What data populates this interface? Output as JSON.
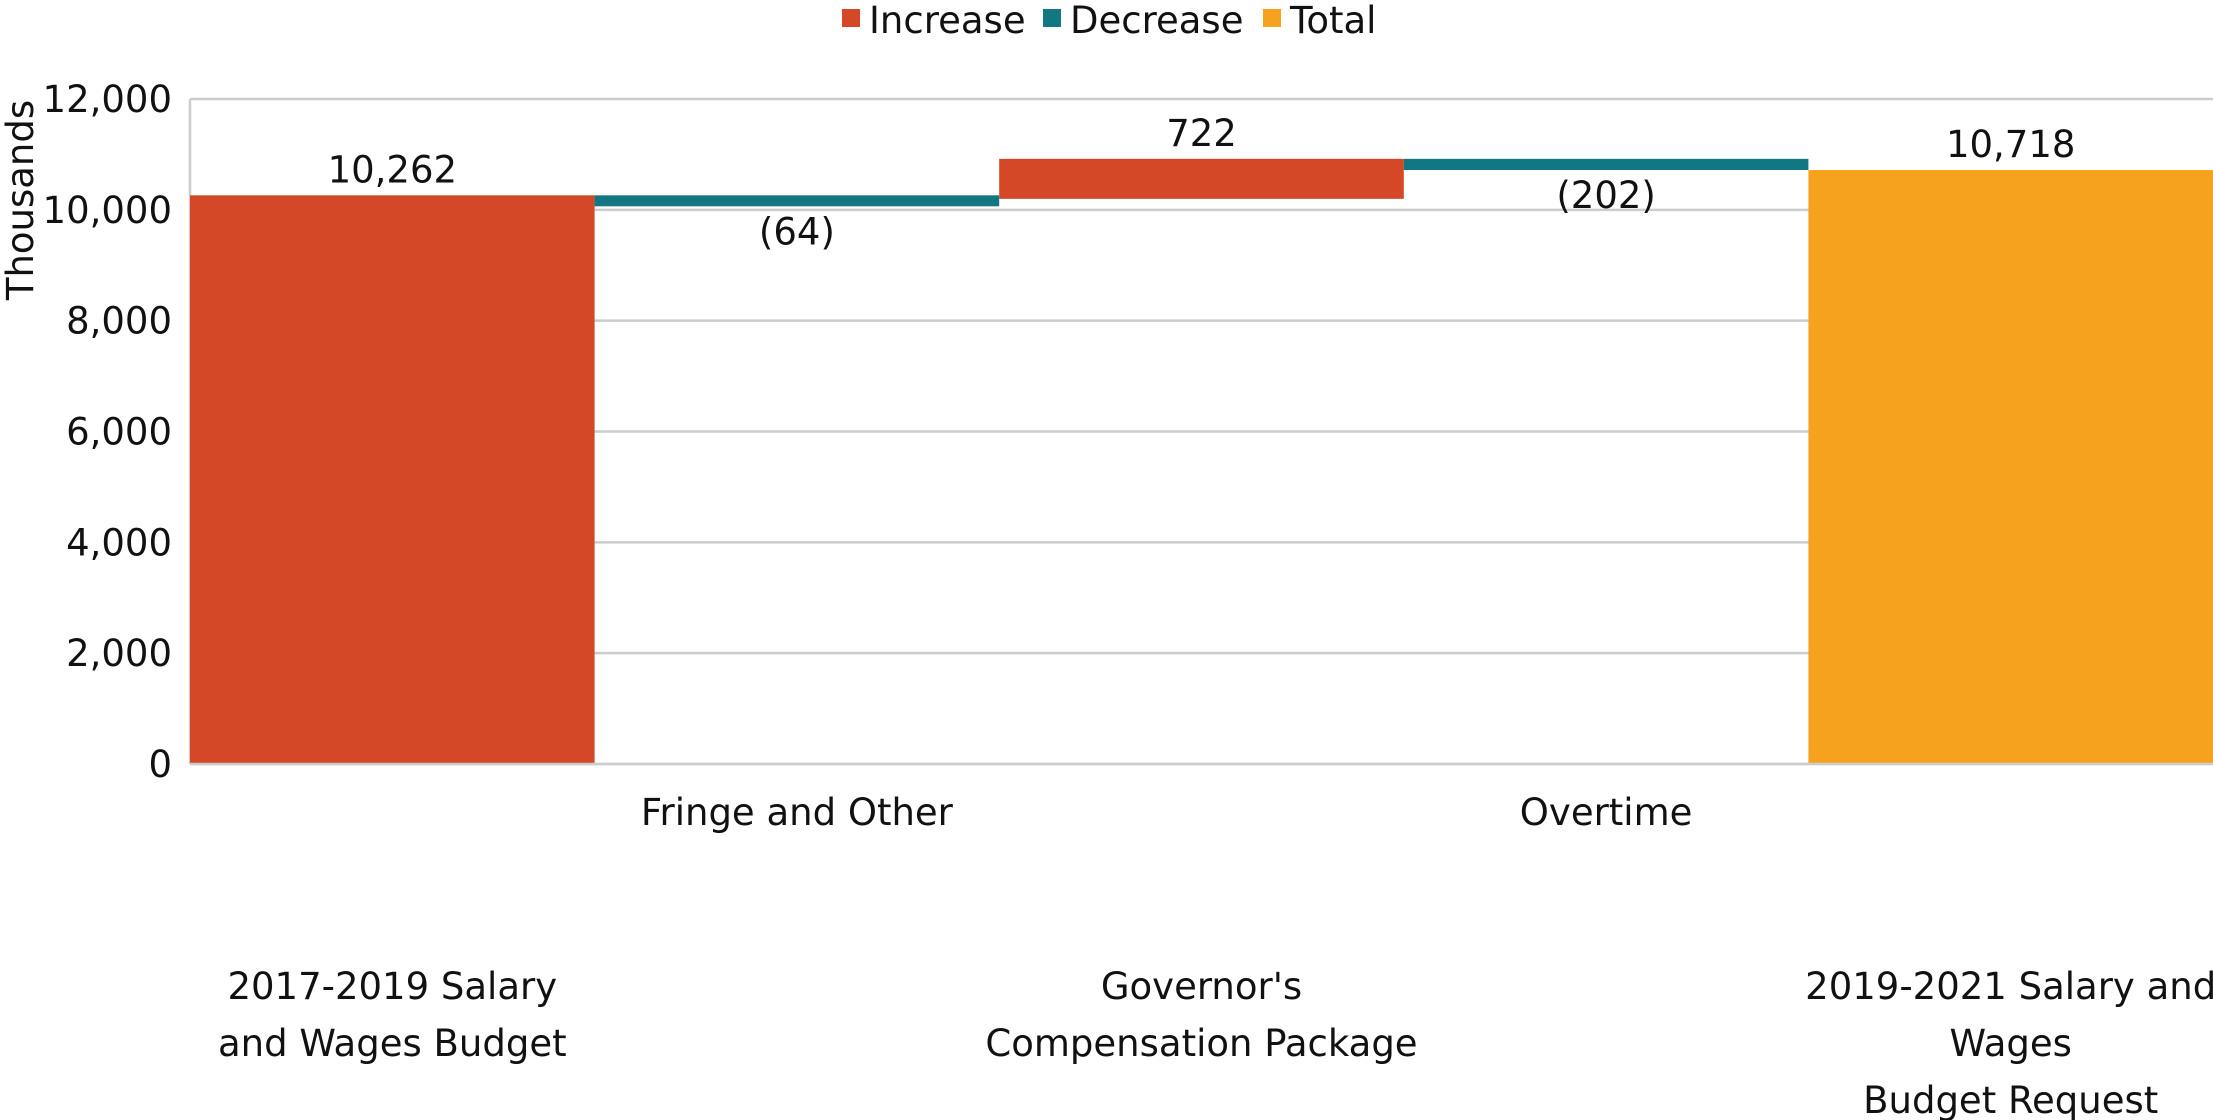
{
  "chart_data": {
    "type": "waterfall",
    "ylabel": "Thousands",
    "ylim": [
      0,
      12000
    ],
    "yticks": [
      0,
      2000,
      4000,
      6000,
      8000,
      10000,
      12000
    ],
    "ytick_labels": [
      "0",
      "2,000",
      "4,000",
      "6,000",
      "8,000",
      "10,000",
      "12,000"
    ],
    "legend": {
      "position": "top",
      "items": [
        {
          "name": "Increase",
          "color": "#D44827"
        },
        {
          "name": "Decrease",
          "color": "#127782"
        },
        {
          "name": "Total",
          "color": "#F7A21F"
        }
      ]
    },
    "categories": [
      {
        "lines": [
          "2017-2019 Salary",
          "and Wages Budget"
        ],
        "row": "low"
      },
      {
        "lines": [
          "Fringe and Other"
        ],
        "row": "high"
      },
      {
        "lines": [
          "Governor's",
          "Compensation Package"
        ],
        "row": "low"
      },
      {
        "lines": [
          "Overtime"
        ],
        "row": "high"
      },
      {
        "lines": [
          "2019-2021 Salary and",
          "Wages",
          "Budget Request"
        ],
        "row": "low"
      }
    ],
    "steps": [
      {
        "kind": "Increase",
        "start": 0,
        "end": 10262,
        "label": "10,262"
      },
      {
        "kind": "Decrease",
        "start": 10262,
        "end": 10198,
        "label": "(64)"
      },
      {
        "kind": "Increase",
        "start": 10198,
        "end": 10920,
        "label": "722"
      },
      {
        "kind": "Decrease",
        "start": 10920,
        "end": 10718,
        "label": "(202)"
      },
      {
        "kind": "Total",
        "start": 0,
        "end": 10718,
        "label": "10,718"
      }
    ]
  }
}
